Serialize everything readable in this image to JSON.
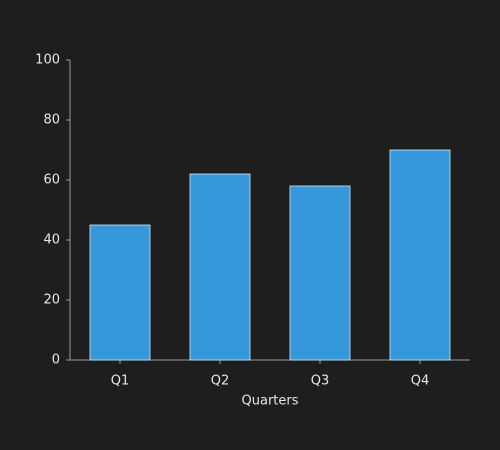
{
  "chart_data": {
    "type": "bar",
    "x_label": "Quarters",
    "categories": [
      "Q1",
      "Q2",
      "Q3",
      "Q4"
    ],
    "values": [
      45,
      62,
      58,
      70
    ],
    "color": "#3498db",
    "ylim": [
      0,
      100
    ],
    "yticks": [
      0,
      20,
      40,
      60,
      80,
      100
    ],
    "grid": false
  }
}
